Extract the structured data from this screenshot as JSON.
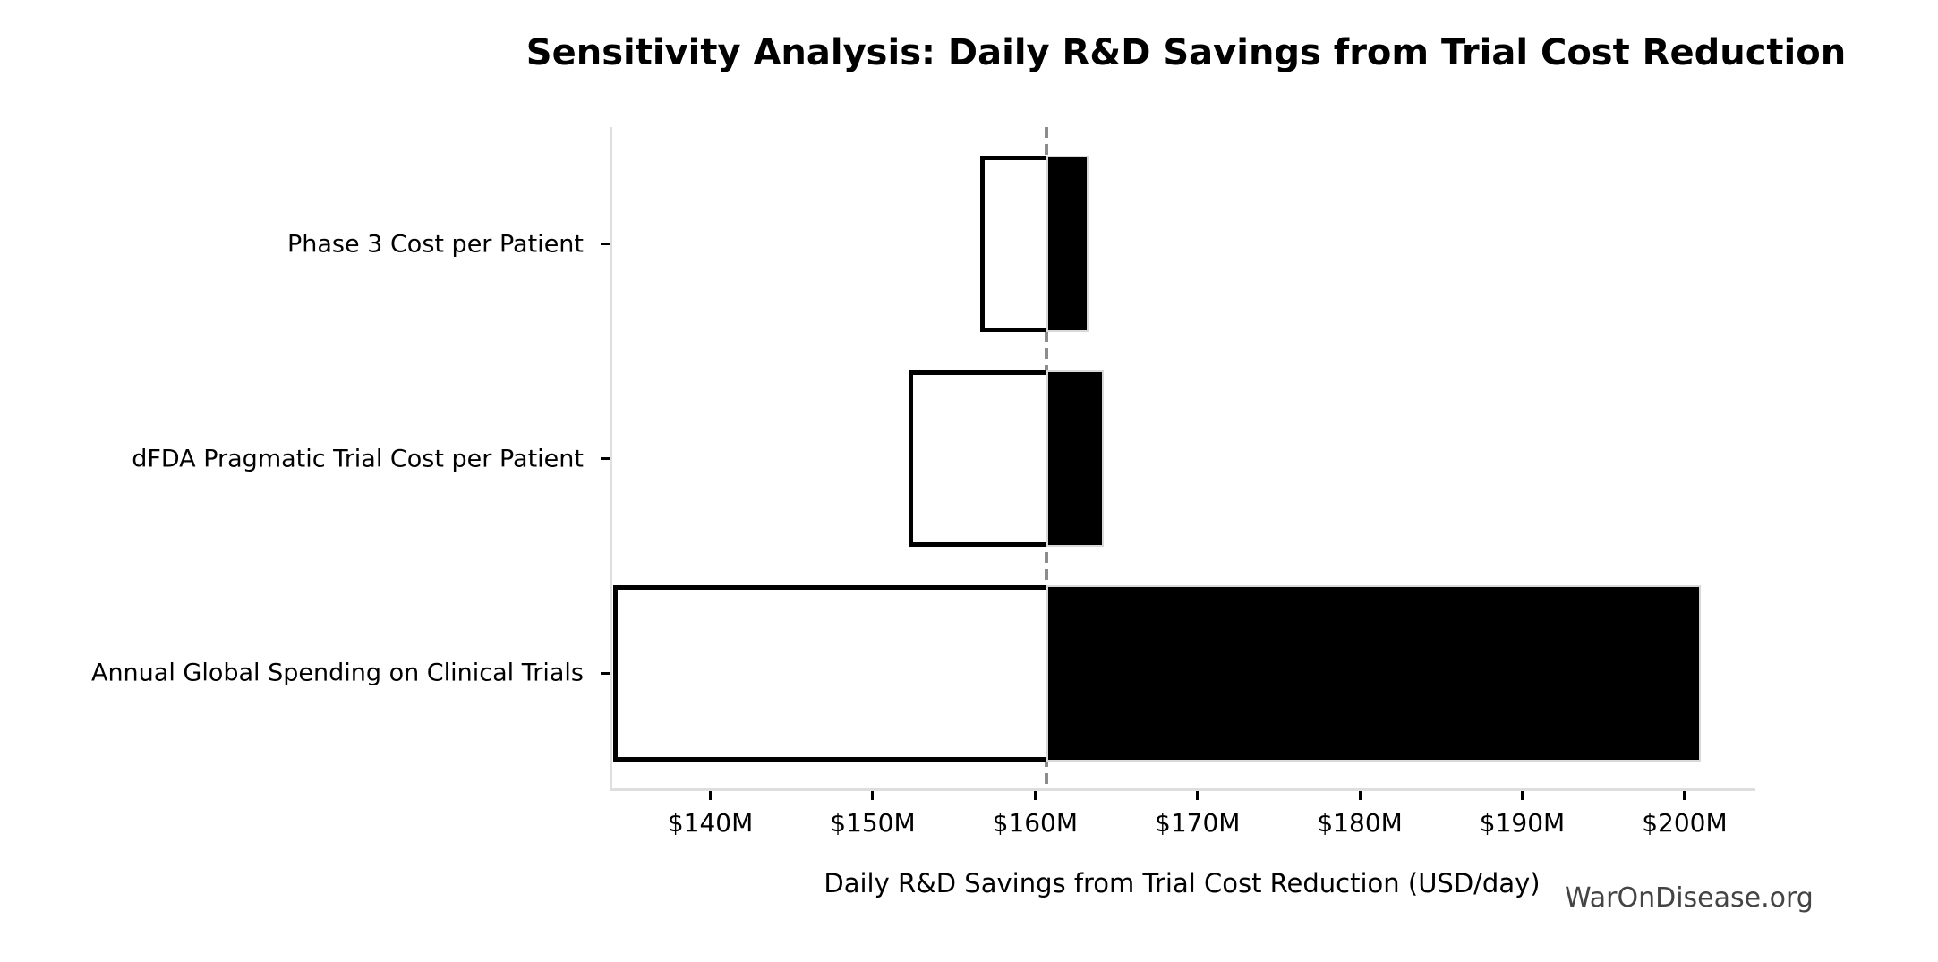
{
  "watermark": "WarOnDisease.org",
  "chart_data": {
    "type": "bar",
    "subtype": "tornado-sensitivity",
    "title": "Sensitivity Analysis: Daily R&D Savings from Trial Cost Reduction",
    "xlabel": "Daily R&D Savings from Trial Cost Reduction (USD/day)",
    "ylabel": "",
    "unit": "USD millions per day",
    "xlim": [
      133.85,
      204.25
    ],
    "baseline": 160.7,
    "x_ticks": [
      {
        "value": 140,
        "label": "$140M"
      },
      {
        "value": 150,
        "label": "$150M"
      },
      {
        "value": 160,
        "label": "$160M"
      },
      {
        "value": 170,
        "label": "$170M"
      },
      {
        "value": 180,
        "label": "$180M"
      },
      {
        "value": 190,
        "label": "$190M"
      },
      {
        "value": 200,
        "label": "$200M"
      }
    ],
    "categories": [
      "Phase 3 Cost per Patient",
      "dFDA Pragmatic Trial Cost per Patient",
      "Annual Global Spending on Clinical Trials"
    ],
    "bars": [
      {
        "label": "Phase 3 Cost per Patient",
        "low": 156.6,
        "high": 163.3
      },
      {
        "label": "dFDA Pragmatic Trial Cost per Patient",
        "low": 152.2,
        "high": 164.2
      },
      {
        "label": "Annual Global Spending on Clinical Trials",
        "low": 134.0,
        "high": 201.0
      }
    ],
    "grid": false,
    "legend": "none",
    "colors": {
      "low_fill": "#ffffff",
      "high_fill": "#000000",
      "bar_edge": "#000000",
      "high_edge": "#d9d9d9",
      "baseline_line": "#8c8c8c",
      "spine": "#dedede",
      "watermark": "#444444"
    }
  }
}
